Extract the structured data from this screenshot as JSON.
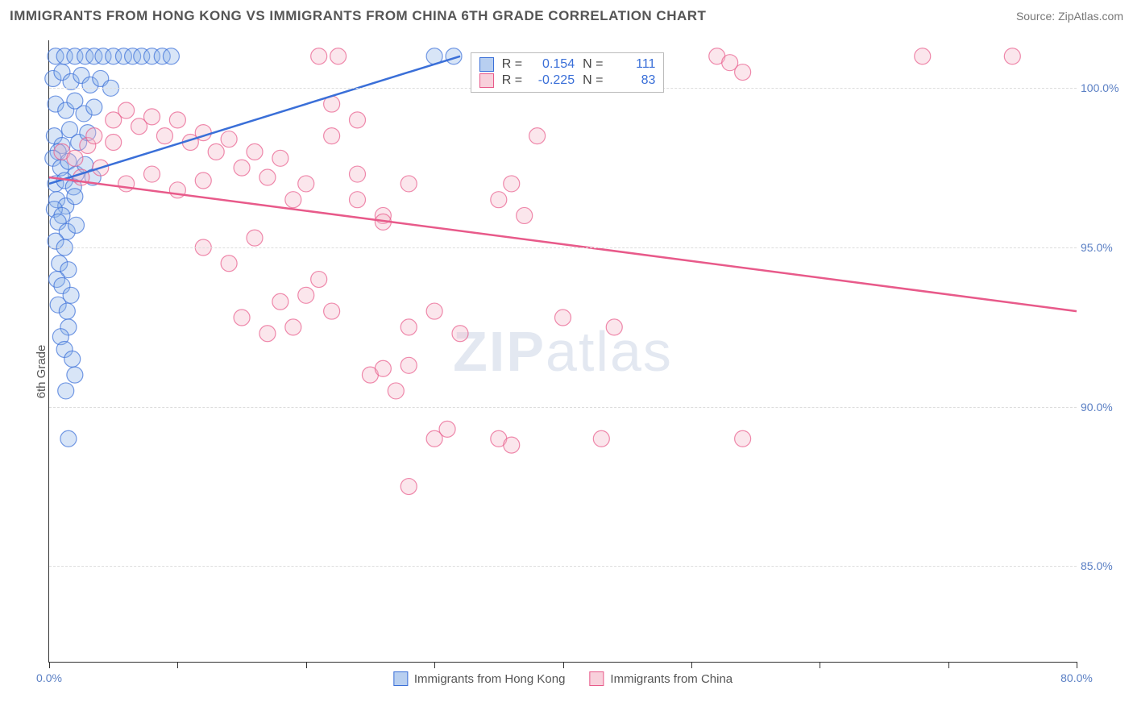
{
  "title": "IMMIGRANTS FROM HONG KONG VS IMMIGRANTS FROM CHINA 6TH GRADE CORRELATION CHART",
  "source": "Source: ZipAtlas.com",
  "watermark": "ZIPatlas",
  "y_axis_label": "6th Grade",
  "chart": {
    "type": "scatter",
    "xlim": [
      0,
      80
    ],
    "ylim": [
      82,
      101.5
    ],
    "x_ticks": [
      0,
      10,
      20,
      30,
      40,
      50,
      60,
      70,
      80
    ],
    "x_tick_labels": {
      "0": "0.0%",
      "80": "80.0%"
    },
    "y_ticks": [
      85,
      90,
      95,
      100
    ],
    "y_tick_labels": {
      "85": "85.0%",
      "90": "90.0%",
      "95": "95.0%",
      "100": "100.0%"
    },
    "grid_color": "#dddddd",
    "background_color": "#ffffff",
    "marker_radius": 10,
    "marker_opacity": 0.35,
    "marker_stroke_opacity": 0.7,
    "series": [
      {
        "name": "Immigrants from Hong Kong",
        "fill_color": "#8fb4e8",
        "stroke_color": "#3a6fd8",
        "legend_fill": "#b8cff0",
        "legend_stroke": "#3a6fd8",
        "r_value": "0.154",
        "n_value": "111",
        "trend": {
          "x1": 0,
          "y1": 97.0,
          "x2": 32,
          "y2": 101.0
        },
        "points": [
          [
            0.5,
            101
          ],
          [
            1.2,
            101
          ],
          [
            2.0,
            101
          ],
          [
            2.8,
            101
          ],
          [
            3.5,
            101
          ],
          [
            4.2,
            101
          ],
          [
            5.0,
            101
          ],
          [
            5.8,
            101
          ],
          [
            6.5,
            101
          ],
          [
            7.2,
            101
          ],
          [
            8.0,
            101
          ],
          [
            8.8,
            101
          ],
          [
            9.5,
            101
          ],
          [
            0.3,
            100.3
          ],
          [
            1.0,
            100.5
          ],
          [
            1.7,
            100.2
          ],
          [
            2.5,
            100.4
          ],
          [
            3.2,
            100.1
          ],
          [
            4.0,
            100.3
          ],
          [
            4.8,
            100.0
          ],
          [
            0.5,
            99.5
          ],
          [
            1.3,
            99.3
          ],
          [
            2.0,
            99.6
          ],
          [
            2.7,
            99.2
          ],
          [
            3.5,
            99.4
          ],
          [
            0.4,
            98.5
          ],
          [
            1.0,
            98.2
          ],
          [
            1.6,
            98.7
          ],
          [
            2.3,
            98.3
          ],
          [
            3.0,
            98.6
          ],
          [
            0.7,
            98.0
          ],
          [
            0.3,
            97.8
          ],
          [
            0.9,
            97.5
          ],
          [
            1.5,
            97.7
          ],
          [
            2.1,
            97.3
          ],
          [
            2.8,
            97.6
          ],
          [
            3.4,
            97.2
          ],
          [
            0.5,
            97.0
          ],
          [
            1.2,
            97.1
          ],
          [
            1.9,
            96.9
          ],
          [
            0.6,
            96.5
          ],
          [
            1.3,
            96.3
          ],
          [
            2.0,
            96.6
          ],
          [
            0.4,
            96.2
          ],
          [
            1.0,
            96.0
          ],
          [
            0.7,
            95.8
          ],
          [
            1.4,
            95.5
          ],
          [
            2.1,
            95.7
          ],
          [
            0.5,
            95.2
          ],
          [
            1.2,
            95.0
          ],
          [
            0.8,
            94.5
          ],
          [
            1.5,
            94.3
          ],
          [
            0.6,
            94.0
          ],
          [
            1.0,
            93.8
          ],
          [
            1.7,
            93.5
          ],
          [
            0.7,
            93.2
          ],
          [
            1.4,
            93.0
          ],
          [
            1.5,
            92.5
          ],
          [
            0.9,
            92.2
          ],
          [
            1.2,
            91.8
          ],
          [
            1.8,
            91.5
          ],
          [
            2.0,
            91.0
          ],
          [
            1.3,
            90.5
          ],
          [
            1.5,
            89.0
          ],
          [
            30.0,
            101.0
          ],
          [
            31.5,
            101.0
          ]
        ]
      },
      {
        "name": "Immigrants from China",
        "fill_color": "#f4b8c8",
        "stroke_color": "#e85a8a",
        "legend_fill": "#f8d0db",
        "legend_stroke": "#e85a8a",
        "r_value": "-0.225",
        "n_value": "83",
        "trend": {
          "x1": 0,
          "y1": 97.2,
          "x2": 80,
          "y2": 93.0
        },
        "points": [
          [
            1.0,
            98.0
          ],
          [
            2.0,
            97.8
          ],
          [
            3.0,
            98.2
          ],
          [
            4.0,
            97.5
          ],
          [
            5.0,
            98.3
          ],
          [
            2.5,
            97.2
          ],
          [
            3.5,
            98.5
          ],
          [
            5.0,
            99.0
          ],
          [
            6.0,
            99.3
          ],
          [
            7.0,
            98.8
          ],
          [
            8.0,
            99.1
          ],
          [
            9.0,
            98.5
          ],
          [
            10.0,
            99.0
          ],
          [
            11.0,
            98.3
          ],
          [
            12.0,
            98.6
          ],
          [
            13.0,
            98.0
          ],
          [
            14.0,
            98.4
          ],
          [
            6.0,
            97.0
          ],
          [
            8.0,
            97.3
          ],
          [
            10.0,
            96.8
          ],
          [
            12.0,
            97.1
          ],
          [
            15.0,
            97.5
          ],
          [
            16.0,
            98.0
          ],
          [
            17.0,
            97.2
          ],
          [
            18.0,
            97.8
          ],
          [
            19.0,
            96.5
          ],
          [
            21.0,
            101.0
          ],
          [
            22.5,
            101.0
          ],
          [
            20.0,
            97.0
          ],
          [
            22.0,
            98.5
          ],
          [
            24.0,
            97.3
          ],
          [
            26.0,
            96.0
          ],
          [
            28.0,
            97.0
          ],
          [
            22.0,
            99.5
          ],
          [
            24.0,
            99.0
          ],
          [
            12.0,
            95.0
          ],
          [
            14.0,
            94.5
          ],
          [
            16.0,
            95.3
          ],
          [
            20.0,
            93.5
          ],
          [
            21.0,
            94.0
          ],
          [
            22.0,
            93.0
          ],
          [
            18.0,
            93.3
          ],
          [
            24.0,
            96.5
          ],
          [
            26.0,
            95.8
          ],
          [
            15.0,
            92.8
          ],
          [
            17.0,
            92.3
          ],
          [
            19.0,
            92.5
          ],
          [
            25.0,
            91.0
          ],
          [
            26.0,
            91.2
          ],
          [
            27.0,
            90.5
          ],
          [
            28.0,
            91.3
          ],
          [
            28.0,
            92.5
          ],
          [
            30.0,
            93.0
          ],
          [
            32.0,
            92.3
          ],
          [
            30.0,
            89.0
          ],
          [
            31.0,
            89.3
          ],
          [
            35.0,
            96.5
          ],
          [
            36.0,
            97.0
          ],
          [
            37.0,
            96.0
          ],
          [
            35.0,
            89.0
          ],
          [
            36.0,
            88.8
          ],
          [
            38.0,
            98.5
          ],
          [
            40.0,
            92.8
          ],
          [
            43.0,
            89.0
          ],
          [
            44.0,
            92.5
          ],
          [
            28.0,
            87.5
          ],
          [
            52.0,
            101.0
          ],
          [
            53.0,
            100.8
          ],
          [
            54.0,
            100.5
          ],
          [
            54.0,
            89.0
          ],
          [
            68.0,
            101.0
          ],
          [
            75.0,
            101.0
          ]
        ]
      }
    ]
  },
  "corr_box": {
    "top_pct": 2,
    "left_pct": 41,
    "r_label": "R =",
    "n_label": "N ="
  }
}
